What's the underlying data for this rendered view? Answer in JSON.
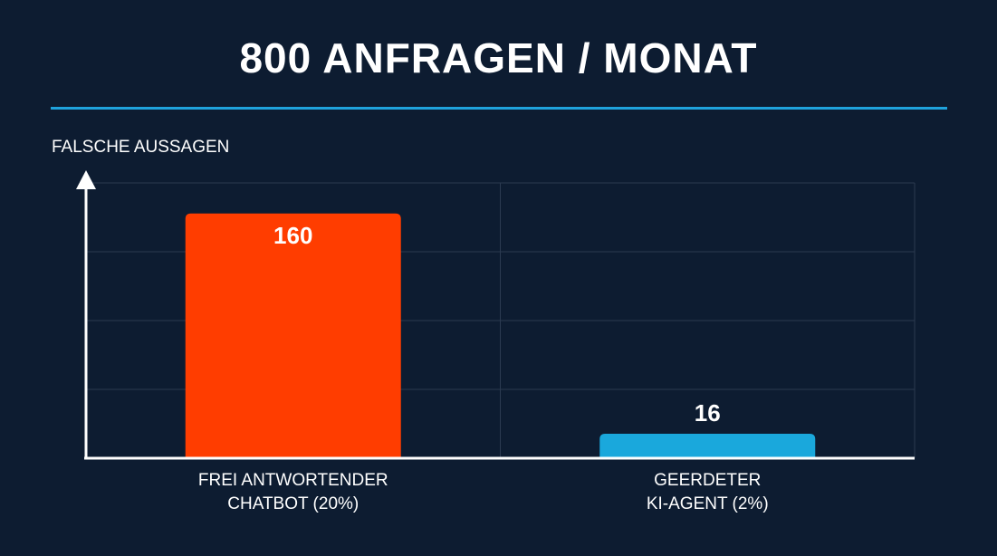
{
  "chart_data": {
    "type": "bar",
    "title": "800 ANFRAGEN / MONAT",
    "ylabel": "FALSCHE AUSSAGEN",
    "xlabel": "",
    "categories": [
      [
        "FREI ANTWORTENDER",
        "CHATBOT (20%)"
      ],
      [
        "GEERDETER",
        "KI-AGENT (2%)"
      ]
    ],
    "values": [
      160,
      16
    ],
    "data_labels": [
      "160",
      "16"
    ],
    "bar_colors": [
      "#ff3d00",
      "#1aa8dc"
    ],
    "ylim": [
      0,
      180
    ],
    "grid": true,
    "legend": "none"
  },
  "colors": {
    "background": "#0d1c31",
    "accent_rule": "#1fa2dc",
    "grid": "#2b3a50",
    "axis": "#ffffff"
  }
}
